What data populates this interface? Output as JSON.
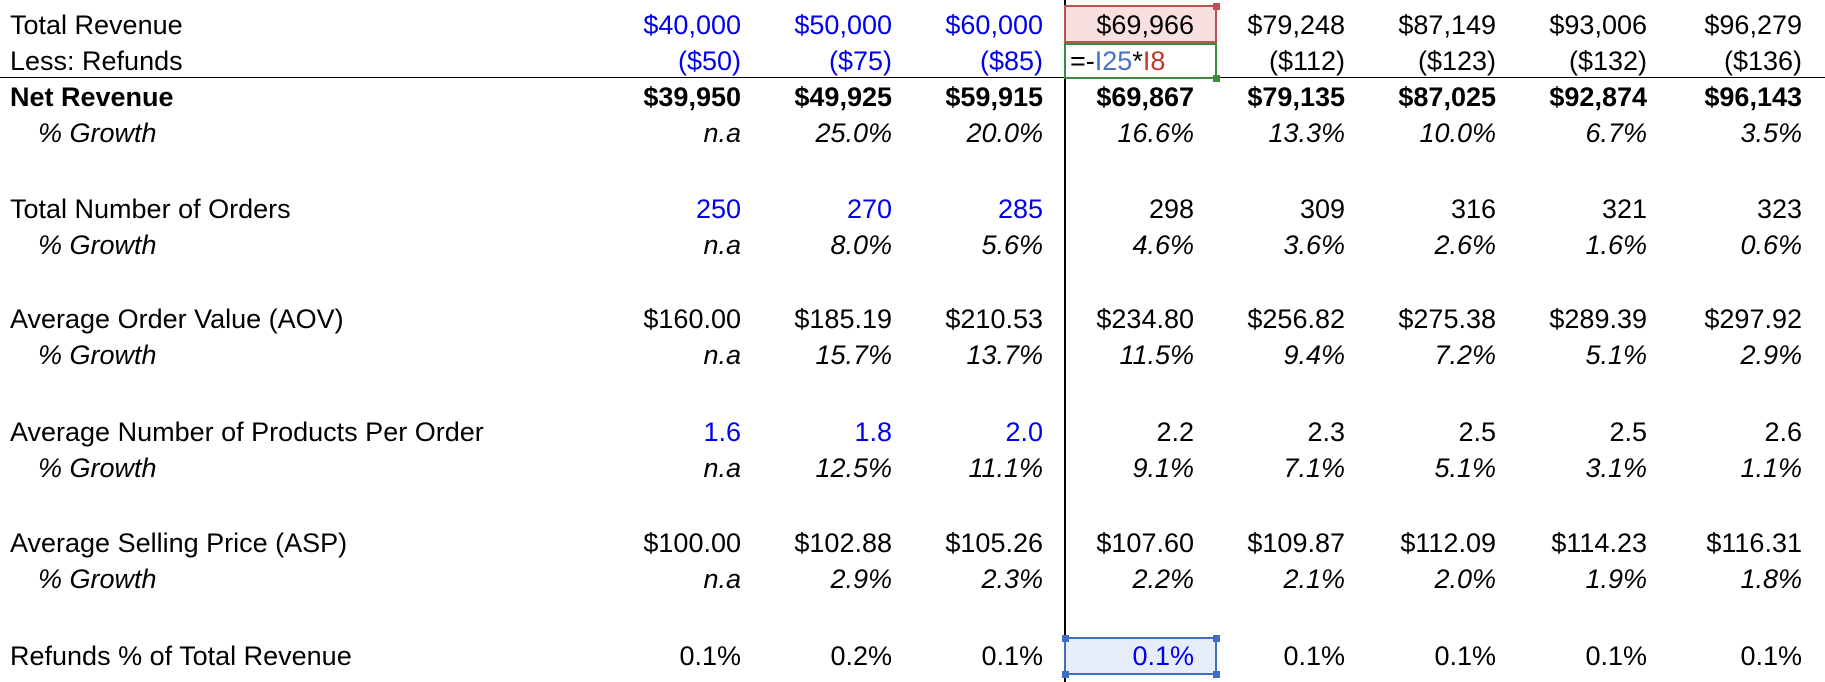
{
  "columns_count": 8,
  "rows": [
    {
      "id": "total-revenue",
      "label": "Total Revenue",
      "style": "normal",
      "values": [
        "$40,000",
        "$50,000",
        "$60,000",
        "$69,966",
        "$79,248",
        "$87,149",
        "$93,006",
        "$96,279"
      ],
      "blue_cols": [
        0,
        1,
        2
      ]
    },
    {
      "id": "less-refunds",
      "label": "Less: Refunds",
      "style": "normal",
      "values": [
        "($50)",
        "($75)",
        "($85)",
        "",
        "($112)",
        "($123)",
        "($132)",
        "($136)"
      ],
      "blue_cols": [
        0,
        1,
        2
      ]
    },
    {
      "id": "net-revenue",
      "label": "Net Revenue",
      "style": "bold",
      "values": [
        "$39,950",
        "$49,925",
        "$59,915",
        "$69,867",
        "$79,135",
        "$87,025",
        "$92,874",
        "$96,143"
      ],
      "blue_cols": []
    },
    {
      "id": "net-revenue-growth",
      "label": "% Growth",
      "style": "italic",
      "values": [
        "n.a",
        "25.0%",
        "20.0%",
        "16.6%",
        "13.3%",
        "10.0%",
        "6.7%",
        "3.5%"
      ],
      "blue_cols": []
    },
    {
      "id": "total-orders",
      "label": "Total Number of Orders",
      "style": "normal",
      "values": [
        "250",
        "270",
        "285",
        "298",
        "309",
        "316",
        "321",
        "323"
      ],
      "blue_cols": [
        0,
        1,
        2
      ]
    },
    {
      "id": "orders-growth",
      "label": "% Growth",
      "style": "italic",
      "values": [
        "n.a",
        "8.0%",
        "5.6%",
        "4.6%",
        "3.6%",
        "2.6%",
        "1.6%",
        "0.6%"
      ],
      "blue_cols": []
    },
    {
      "id": "aov",
      "label": "Average Order Value (AOV)",
      "style": "normal",
      "values": [
        "$160.00",
        "$185.19",
        "$210.53",
        "$234.80",
        "$256.82",
        "$275.38",
        "$289.39",
        "$297.92"
      ],
      "blue_cols": []
    },
    {
      "id": "aov-growth",
      "label": "% Growth",
      "style": "italic",
      "values": [
        "n.a",
        "15.7%",
        "13.7%",
        "11.5%",
        "9.4%",
        "7.2%",
        "5.1%",
        "2.9%"
      ],
      "blue_cols": []
    },
    {
      "id": "products-per-order",
      "label": "Average Number of Products Per Order",
      "style": "normal",
      "values": [
        "1.6",
        "1.8",
        "2.0",
        "2.2",
        "2.3",
        "2.5",
        "2.5",
        "2.6"
      ],
      "blue_cols": [
        0,
        1,
        2
      ]
    },
    {
      "id": "products-growth",
      "label": "% Growth",
      "style": "italic",
      "values": [
        "n.a",
        "12.5%",
        "11.1%",
        "9.1%",
        "7.1%",
        "5.1%",
        "3.1%",
        "1.1%"
      ],
      "blue_cols": []
    },
    {
      "id": "asp",
      "label": "Average Selling Price (ASP)",
      "style": "normal",
      "values": [
        "$100.00",
        "$102.88",
        "$105.26",
        "$107.60",
        "$109.87",
        "$112.09",
        "$114.23",
        "$116.31"
      ],
      "blue_cols": []
    },
    {
      "id": "asp-growth",
      "label": "% Growth",
      "style": "italic",
      "values": [
        "n.a",
        "2.9%",
        "2.3%",
        "2.2%",
        "2.1%",
        "2.0%",
        "1.9%",
        "1.8%"
      ],
      "blue_cols": []
    },
    {
      "id": "refunds-pct",
      "label": "Refunds % of Total Revenue",
      "style": "normal",
      "values": [
        "0.1%",
        "0.2%",
        "0.1%",
        "0.1%",
        "0.1%",
        "0.1%",
        "0.1%",
        "0.1%"
      ],
      "blue_cols": [
        3
      ]
    }
  ],
  "formula_cell": {
    "prefix": "=-",
    "ref1": "I25",
    "op": "*",
    "ref2": "I8"
  },
  "colors": {
    "input_blue": "#0000ee",
    "ref_blue": "#4472c4",
    "ref_red": "#c0392b"
  }
}
